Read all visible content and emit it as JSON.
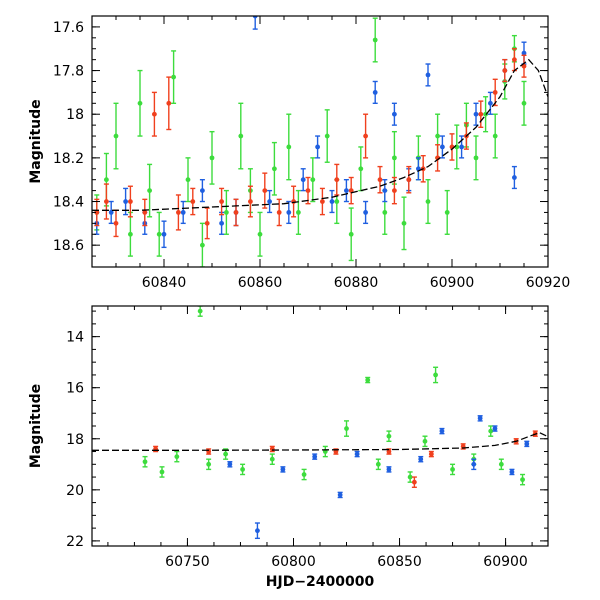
{
  "colors": {
    "green": "#3ddc3d",
    "blue": "#1f5fe0",
    "red": "#f0401e",
    "model": "#000000"
  },
  "chart_data": [
    {
      "type": "scatter",
      "title": "",
      "xlabel": "",
      "ylabel": "Magnitude",
      "xlim": [
        60825,
        60920
      ],
      "ylim": [
        18.7,
        17.55
      ],
      "y_inverted": true,
      "xticks": [
        60840,
        60860,
        60880,
        60900,
        60920
      ],
      "yticks": [
        17.6,
        17.8,
        18,
        18.2,
        18.4,
        18.6
      ],
      "yticklabels": [
        "17.6",
        "17.8",
        "18",
        "18.2",
        "18.4",
        "18.6"
      ],
      "model_curve": {
        "x": [
          60825,
          60835,
          60845,
          60855,
          60865,
          60875,
          60885,
          60890,
          60895,
          60900,
          60905,
          60910,
          60913,
          60916,
          60918,
          60920
        ],
        "y": [
          18.44,
          18.44,
          18.43,
          18.42,
          18.41,
          18.38,
          18.33,
          18.29,
          18.24,
          18.16,
          18.06,
          17.92,
          17.8,
          17.75,
          17.8,
          17.92
        ]
      },
      "series": [
        {
          "color": "green",
          "points": [
            {
              "x": 60826,
              "y": 18.45,
              "e": 0.08
            },
            {
              "x": 60828,
              "y": 18.3,
              "e": 0.12
            },
            {
              "x": 60830,
              "y": 18.1,
              "e": 0.15
            },
            {
              "x": 60833,
              "y": 18.55,
              "e": 0.1
            },
            {
              "x": 60835,
              "y": 17.95,
              "e": 0.15
            },
            {
              "x": 60837,
              "y": 18.35,
              "e": 0.12
            },
            {
              "x": 60839,
              "y": 18.55,
              "e": 0.1
            },
            {
              "x": 60842,
              "y": 17.83,
              "e": 0.12
            },
            {
              "x": 60845,
              "y": 18.3,
              "e": 0.1
            },
            {
              "x": 60848,
              "y": 18.6,
              "e": 0.1
            },
            {
              "x": 60850,
              "y": 18.2,
              "e": 0.12
            },
            {
              "x": 60853,
              "y": 18.45,
              "e": 0.1
            },
            {
              "x": 60856,
              "y": 18.1,
              "e": 0.15
            },
            {
              "x": 60858,
              "y": 18.35,
              "e": 0.1
            },
            {
              "x": 60860,
              "y": 18.55,
              "e": 0.1
            },
            {
              "x": 60863,
              "y": 18.25,
              "e": 0.12
            },
            {
              "x": 60866,
              "y": 18.15,
              "e": 0.15
            },
            {
              "x": 60868,
              "y": 18.45,
              "e": 0.1
            },
            {
              "x": 60871,
              "y": 18.3,
              "e": 0.1
            },
            {
              "x": 60874,
              "y": 18.1,
              "e": 0.12
            },
            {
              "x": 60876,
              "y": 18.4,
              "e": 0.1
            },
            {
              "x": 60879,
              "y": 18.55,
              "e": 0.12
            },
            {
              "x": 60881,
              "y": 18.25,
              "e": 0.1
            },
            {
              "x": 60884,
              "y": 17.66,
              "e": 0.1
            },
            {
              "x": 60886,
              "y": 18.45,
              "e": 0.1
            },
            {
              "x": 60888,
              "y": 18.2,
              "e": 0.12
            },
            {
              "x": 60890,
              "y": 18.5,
              "e": 0.12
            },
            {
              "x": 60893,
              "y": 18.2,
              "e": 0.1
            },
            {
              "x": 60895,
              "y": 18.4,
              "e": 0.1
            },
            {
              "x": 60897,
              "y": 18.1,
              "e": 0.1
            },
            {
              "x": 60899,
              "y": 18.45,
              "e": 0.1
            },
            {
              "x": 60901,
              "y": 18.15,
              "e": 0.1
            },
            {
              "x": 60903,
              "y": 18.05,
              "e": 0.1
            },
            {
              "x": 60905,
              "y": 18.2,
              "e": 0.1
            },
            {
              "x": 60907,
              "y": 18.0,
              "e": 0.08
            },
            {
              "x": 60909,
              "y": 18.1,
              "e": 0.1
            },
            {
              "x": 60911,
              "y": 17.85,
              "e": 0.08
            },
            {
              "x": 60913,
              "y": 17.7,
              "e": 0.06
            },
            {
              "x": 60915,
              "y": 17.95,
              "e": 0.1
            }
          ]
        },
        {
          "color": "blue",
          "points": [
            {
              "x": 60826,
              "y": 18.5,
              "e": 0.05
            },
            {
              "x": 60829,
              "y": 18.45,
              "e": 0.05
            },
            {
              "x": 60832,
              "y": 18.4,
              "e": 0.06
            },
            {
              "x": 60836,
              "y": 18.5,
              "e": 0.05
            },
            {
              "x": 60840,
              "y": 18.55,
              "e": 0.06
            },
            {
              "x": 60844,
              "y": 18.45,
              "e": 0.05
            },
            {
              "x": 60848,
              "y": 18.35,
              "e": 0.05
            },
            {
              "x": 60852,
              "y": 18.5,
              "e": 0.05
            },
            {
              "x": 60855,
              "y": 18.45,
              "e": 0.06
            },
            {
              "x": 60859,
              "y": 17.55,
              "e": 0.06
            },
            {
              "x": 60862,
              "y": 18.4,
              "e": 0.05
            },
            {
              "x": 60866,
              "y": 18.45,
              "e": 0.05
            },
            {
              "x": 60869,
              "y": 18.3,
              "e": 0.05
            },
            {
              "x": 60872,
              "y": 18.15,
              "e": 0.05
            },
            {
              "x": 60875,
              "y": 18.4,
              "e": 0.05
            },
            {
              "x": 60878,
              "y": 18.35,
              "e": 0.05
            },
            {
              "x": 60882,
              "y": 18.45,
              "e": 0.05
            },
            {
              "x": 60884,
              "y": 17.9,
              "e": 0.05
            },
            {
              "x": 60886,
              "y": 18.35,
              "e": 0.05
            },
            {
              "x": 60888,
              "y": 18.0,
              "e": 0.05
            },
            {
              "x": 60891,
              "y": 18.3,
              "e": 0.05
            },
            {
              "x": 60893,
              "y": 18.25,
              "e": 0.05
            },
            {
              "x": 60895,
              "y": 17.82,
              "e": 0.05
            },
            {
              "x": 60898,
              "y": 18.15,
              "e": 0.05
            },
            {
              "x": 60902,
              "y": 18.15,
              "e": 0.05
            },
            {
              "x": 60905,
              "y": 18.0,
              "e": 0.05
            },
            {
              "x": 60908,
              "y": 17.95,
              "e": 0.05
            },
            {
              "x": 60911,
              "y": 17.8,
              "e": 0.05
            },
            {
              "x": 60913,
              "y": 18.29,
              "e": 0.05
            },
            {
              "x": 60915,
              "y": 17.72,
              "e": 0.05
            }
          ]
        },
        {
          "color": "red",
          "points": [
            {
              "x": 60826,
              "y": 18.45,
              "e": 0.06
            },
            {
              "x": 60828,
              "y": 18.4,
              "e": 0.08
            },
            {
              "x": 60830,
              "y": 18.5,
              "e": 0.06
            },
            {
              "x": 60833,
              "y": 18.4,
              "e": 0.07
            },
            {
              "x": 60836,
              "y": 18.45,
              "e": 0.06
            },
            {
              "x": 60838,
              "y": 18.0,
              "e": 0.1
            },
            {
              "x": 60841,
              "y": 17.95,
              "e": 0.12
            },
            {
              "x": 60843,
              "y": 18.45,
              "e": 0.08
            },
            {
              "x": 60846,
              "y": 18.4,
              "e": 0.06
            },
            {
              "x": 60849,
              "y": 18.5,
              "e": 0.07
            },
            {
              "x": 60852,
              "y": 18.4,
              "e": 0.06
            },
            {
              "x": 60855,
              "y": 18.45,
              "e": 0.06
            },
            {
              "x": 60858,
              "y": 18.4,
              "e": 0.07
            },
            {
              "x": 60861,
              "y": 18.35,
              "e": 0.08
            },
            {
              "x": 60864,
              "y": 18.45,
              "e": 0.06
            },
            {
              "x": 60867,
              "y": 18.4,
              "e": 0.07
            },
            {
              "x": 60870,
              "y": 18.35,
              "e": 0.06
            },
            {
              "x": 60873,
              "y": 18.4,
              "e": 0.06
            },
            {
              "x": 60876,
              "y": 18.3,
              "e": 0.07
            },
            {
              "x": 60879,
              "y": 18.35,
              "e": 0.06
            },
            {
              "x": 60882,
              "y": 18.1,
              "e": 0.1
            },
            {
              "x": 60885,
              "y": 18.3,
              "e": 0.06
            },
            {
              "x": 60888,
              "y": 18.35,
              "e": 0.06
            },
            {
              "x": 60891,
              "y": 18.3,
              "e": 0.06
            },
            {
              "x": 60894,
              "y": 18.25,
              "e": 0.06
            },
            {
              "x": 60897,
              "y": 18.2,
              "e": 0.06
            },
            {
              "x": 60900,
              "y": 18.15,
              "e": 0.06
            },
            {
              "x": 60903,
              "y": 18.1,
              "e": 0.06
            },
            {
              "x": 60906,
              "y": 18.0,
              "e": 0.06
            },
            {
              "x": 60909,
              "y": 17.9,
              "e": 0.06
            },
            {
              "x": 60911,
              "y": 17.8,
              "e": 0.05
            },
            {
              "x": 60913,
              "y": 17.75,
              "e": 0.05
            },
            {
              "x": 60915,
              "y": 17.78,
              "e": 0.05
            }
          ]
        }
      ]
    },
    {
      "type": "scatter",
      "title": "",
      "xlabel": "HJD−2400000",
      "ylabel": "Magnitude",
      "xlim": [
        60705,
        60920
      ],
      "ylim": [
        22.2,
        12.8
      ],
      "y_inverted": true,
      "xticks": [
        60750,
        60800,
        60850,
        60900
      ],
      "yticks": [
        14,
        16,
        18,
        20,
        22
      ],
      "yticklabels": [
        "14",
        "16",
        "18",
        "20",
        "22"
      ],
      "model_curve": {
        "x": [
          60705,
          60750,
          60800,
          60850,
          60880,
          60895,
          60905,
          60912,
          60916,
          60920
        ],
        "y": [
          18.45,
          18.45,
          18.44,
          18.42,
          18.36,
          18.26,
          18.1,
          17.88,
          17.76,
          17.92
        ]
      },
      "series": [
        {
          "color": "green",
          "points": [
            {
              "x": 60756,
              "y": 13.0,
              "e": 0.2
            },
            {
              "x": 60835,
              "y": 15.7,
              "e": 0.1
            },
            {
              "x": 60867,
              "y": 15.5,
              "e": 0.3
            },
            {
              "x": 60730,
              "y": 18.9,
              "e": 0.2
            },
            {
              "x": 60738,
              "y": 19.3,
              "e": 0.2
            },
            {
              "x": 60745,
              "y": 18.7,
              "e": 0.2
            },
            {
              "x": 60760,
              "y": 19.0,
              "e": 0.2
            },
            {
              "x": 60768,
              "y": 18.6,
              "e": 0.2
            },
            {
              "x": 60776,
              "y": 19.2,
              "e": 0.2
            },
            {
              "x": 60790,
              "y": 18.8,
              "e": 0.2
            },
            {
              "x": 60805,
              "y": 19.4,
              "e": 0.2
            },
            {
              "x": 60815,
              "y": 18.5,
              "e": 0.2
            },
            {
              "x": 60825,
              "y": 17.6,
              "e": 0.3
            },
            {
              "x": 60840,
              "y": 19.0,
              "e": 0.2
            },
            {
              "x": 60845,
              "y": 17.9,
              "e": 0.2
            },
            {
              "x": 60855,
              "y": 19.5,
              "e": 0.2
            },
            {
              "x": 60862,
              "y": 18.1,
              "e": 0.2
            },
            {
              "x": 60875,
              "y": 19.2,
              "e": 0.2
            },
            {
              "x": 60885,
              "y": 18.8,
              "e": 0.2
            },
            {
              "x": 60893,
              "y": 17.7,
              "e": 0.2
            },
            {
              "x": 60898,
              "y": 19.0,
              "e": 0.2
            },
            {
              "x": 60908,
              "y": 19.6,
              "e": 0.2
            }
          ]
        },
        {
          "color": "blue",
          "points": [
            {
              "x": 60783,
              "y": 21.6,
              "e": 0.3
            },
            {
              "x": 60822,
              "y": 20.2,
              "e": 0.1
            },
            {
              "x": 60795,
              "y": 19.2,
              "e": 0.1
            },
            {
              "x": 60770,
              "y": 19.0,
              "e": 0.1
            },
            {
              "x": 60845,
              "y": 19.2,
              "e": 0.1
            },
            {
              "x": 60870,
              "y": 17.7,
              "e": 0.1
            },
            {
              "x": 60888,
              "y": 17.2,
              "e": 0.1
            },
            {
              "x": 60895,
              "y": 17.6,
              "e": 0.1
            },
            {
              "x": 60885,
              "y": 19.0,
              "e": 0.2
            },
            {
              "x": 60903,
              "y": 19.3,
              "e": 0.1
            },
            {
              "x": 60860,
              "y": 18.8,
              "e": 0.1
            },
            {
              "x": 60810,
              "y": 18.7,
              "e": 0.1
            },
            {
              "x": 60830,
              "y": 18.6,
              "e": 0.1
            },
            {
              "x": 60910,
              "y": 18.2,
              "e": 0.1
            }
          ]
        },
        {
          "color": "red",
          "points": [
            {
              "x": 60857,
              "y": 19.7,
              "e": 0.2
            },
            {
              "x": 60845,
              "y": 18.5,
              "e": 0.1
            },
            {
              "x": 60865,
              "y": 18.6,
              "e": 0.1
            },
            {
              "x": 60735,
              "y": 18.4,
              "e": 0.1
            },
            {
              "x": 60760,
              "y": 18.5,
              "e": 0.1
            },
            {
              "x": 60790,
              "y": 18.4,
              "e": 0.1
            },
            {
              "x": 60820,
              "y": 18.5,
              "e": 0.1
            },
            {
              "x": 60880,
              "y": 18.3,
              "e": 0.1
            },
            {
              "x": 60905,
              "y": 18.1,
              "e": 0.1
            },
            {
              "x": 60914,
              "y": 17.8,
              "e": 0.1
            }
          ]
        }
      ]
    }
  ]
}
